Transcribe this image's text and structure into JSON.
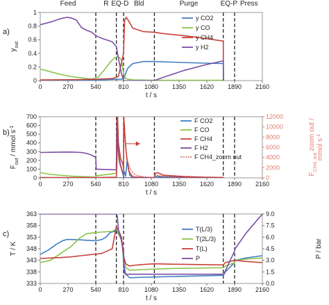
{
  "chart_data": [
    {
      "type": "line",
      "panel_label": "a)",
      "xlabel": "t / s",
      "ylabel": "y",
      "ylabel_sub": "out",
      "xlim": [
        0,
        2160
      ],
      "ylim": [
        0,
        1
      ],
      "x_ticks": [
        0,
        270,
        540,
        810,
        1080,
        1350,
        1620,
        1890,
        2160
      ],
      "y_ticks": [
        0,
        0.2,
        0.4,
        0.6,
        0.8,
        1
      ],
      "y_tick_labels": [
        "0",
        "0.2",
        "0.4",
        "0.6",
        "0.8",
        "1"
      ],
      "phase_lines": [
        540,
        740,
        810,
        1110,
        1780,
        1890
      ],
      "phases": [
        {
          "label": "Feed",
          "x": 270
        },
        {
          "label": "R",
          "x": 640
        },
        {
          "label": "EQ-D",
          "x": 775
        },
        {
          "label": "Bld",
          "x": 960
        },
        {
          "label": "Purge",
          "x": 1445
        },
        {
          "label": "EQ-P",
          "x": 1835
        },
        {
          "label": "Press",
          "x": 2030
        }
      ],
      "legend_position": "right",
      "series": [
        {
          "name": "y CO2",
          "color": "#3f7fc1",
          "x": [
            0,
            540,
            740,
            750,
            780,
            810,
            850,
            900,
            1000,
            1110,
            1300,
            1500,
            1780,
            1781
          ],
          "y": [
            0,
            0.005,
            0.02,
            0.02,
            0.02,
            0.03,
            0.18,
            0.25,
            0.28,
            0.28,
            0.27,
            0.26,
            0.25,
            0
          ]
        },
        {
          "name": "y CO",
          "color": "#8bc34a",
          "x": [
            0,
            100,
            200,
            300,
            400,
            500,
            560,
            620,
            680,
            720,
            745,
            770,
            790,
            810,
            830,
            900,
            1110,
            1780
          ],
          "y": [
            0.17,
            0.13,
            0.09,
            0.06,
            0.04,
            0.02,
            0.05,
            0.15,
            0.27,
            0.33,
            0.35,
            0.34,
            0.3,
            0.1,
            0.03,
            0.01,
            0.005,
            0.005
          ]
        },
        {
          "name": "y CH4",
          "color": "#c8403a",
          "x": [
            0,
            400,
            540,
            700,
            760,
            810,
            820,
            835,
            850,
            900,
            1000,
            1110,
            1200,
            1400,
            1600,
            1780,
            1781
          ],
          "y": [
            0.01,
            0.015,
            0.02,
            0.03,
            0.06,
            0.4,
            0.88,
            0.93,
            0.9,
            0.77,
            0.72,
            0.71,
            0.69,
            0.66,
            0.62,
            0.58,
            0
          ]
        },
        {
          "name": "y H2",
          "color": "#7b4ea3",
          "x": [
            0,
            100,
            200,
            260,
            300,
            350,
            400,
            450,
            500,
            540,
            600,
            700,
            740,
            760,
            790,
            810,
            820,
            1110,
            1200,
            1400,
            1600,
            1780,
            1781
          ],
          "y": [
            0.82,
            0.86,
            0.91,
            0.93,
            0.92,
            0.89,
            0.78,
            0.74,
            0.71,
            0.66,
            0.62,
            0.57,
            0.5,
            0.33,
            0.1,
            0.01,
            0,
            0,
            0.05,
            0.15,
            0.23,
            0.29,
            0
          ]
        }
      ]
    },
    {
      "type": "line",
      "panel_label": "b)",
      "xlabel": "t / s",
      "ylabel": "F",
      "ylabel_sub": "out",
      "ylabel_rest": " / mmol s",
      "ylabel_sup": "-1",
      "y2label": "F",
      "y2label_sub": "CH4, out",
      "y2label_rest": " zoom out /",
      "y2label_line2": "mmol s",
      "y2label_sup": "-1",
      "xlim": [
        0,
        2160
      ],
      "ylim": [
        0,
        700
      ],
      "y2lim": [
        0,
        12000
      ],
      "x_ticks": [
        0,
        270,
        540,
        810,
        1080,
        1350,
        1620,
        1890,
        2160
      ],
      "y_ticks": [
        0,
        100,
        200,
        300,
        400,
        500,
        600,
        700
      ],
      "y2_ticks": [
        0,
        2000,
        4000,
        6000,
        8000,
        10000,
        12000
      ],
      "phase_lines": [
        540,
        740,
        810,
        1110,
        1780,
        1890
      ],
      "legend_position": "right",
      "series": [
        {
          "name": "F CO2",
          "color": "#3f7fc1",
          "x": [
            0,
            540,
            740,
            810,
            815,
            830,
            845,
            870,
            900,
            1110,
            1115,
            1140,
            1200,
            1400,
            1600,
            1780,
            1781
          ],
          "y": [
            0,
            0,
            0,
            0,
            80,
            20,
            200,
            30,
            5,
            0,
            20,
            15,
            10,
            6,
            4,
            3,
            0
          ]
        },
        {
          "name": "F CO",
          "color": "#8bc34a",
          "x": [
            0,
            100,
            300,
            540,
            545,
            700,
            740,
            745,
            755,
            765,
            790,
            805,
            810,
            815,
            830,
            870,
            900,
            1110,
            1780
          ],
          "y": [
            60,
            40,
            20,
            8,
            25,
            45,
            55,
            700,
            400,
            200,
            100,
            60,
            15,
            2,
            0,
            0,
            0,
            0,
            0
          ]
        },
        {
          "name": "F CH4",
          "color": "#c8403a",
          "x": [
            0,
            540,
            740,
            745,
            752,
            760,
            780,
            805,
            810,
            812,
            818,
            822,
            828,
            840,
            860,
            900,
            1110,
            1115,
            1140,
            1200,
            1400,
            1600,
            1780,
            1781
          ],
          "y": [
            3,
            4,
            8,
            150,
            700,
            400,
            230,
            150,
            100,
            700,
            600,
            500,
            400,
            250,
            80,
            10,
            0,
            50,
            60,
            30,
            15,
            8,
            5,
            0
          ]
        },
        {
          "name": "F H2",
          "color": "#7b4ea3",
          "x": [
            0,
            100,
            200,
            300,
            400,
            450,
            500,
            530,
            540,
            545,
            600,
            700,
            740,
            745,
            760,
            780,
            800,
            810,
            815,
            1110,
            1780
          ],
          "y": [
            290,
            293,
            295,
            296,
            290,
            280,
            260,
            240,
            230,
            100,
            97,
            94,
            92,
            700,
            300,
            150,
            60,
            20,
            0,
            0,
            0
          ]
        },
        {
          "name": "F CH4_zoom out",
          "color": "#c8403a",
          "dashed": true,
          "axis": "y2",
          "x": [
            0,
            740,
            745,
            752,
            760,
            775,
            790,
            805,
            810,
            813,
            818,
            825,
            835,
            850,
            880,
            920,
            1000,
            1110,
            1115,
            1140,
            1200,
            1400,
            1600,
            1780,
            1781
          ],
          "y": [
            0,
            0,
            11800,
            9000,
            4500,
            2600,
            1800,
            1200,
            800,
            12000,
            9000,
            7000,
            5000,
            3200,
            1500,
            600,
            200,
            100,
            700,
            500,
            300,
            150,
            100,
            80,
            0
          ]
        }
      ],
      "arrow": {
        "x_from": 830,
        "x_to": 970,
        "y": 6700
      }
    },
    {
      "type": "line",
      "panel_label": "c)",
      "xlabel": "t / s",
      "ylabel": "T / K",
      "y2label": "P / bar",
      "xlim": [
        0,
        2160
      ],
      "ylim": [
        333,
        363
      ],
      "y2lim": [
        0,
        9
      ],
      "x_ticks": [
        0,
        270,
        540,
        810,
        1080,
        1350,
        1620,
        1890,
        2160
      ],
      "y_ticks": [
        333,
        338,
        343,
        348,
        353,
        358,
        363
      ],
      "y2_ticks": [
        0,
        1.5,
        3,
        4.5,
        6,
        7.5,
        9
      ],
      "y2_tick_labels": [
        "0.0",
        "1.5",
        "3.0",
        "4.5",
        "6.0",
        "7.5",
        "9.0"
      ],
      "phase_lines": [
        540,
        740,
        810,
        1110,
        1780,
        1890
      ],
      "legend_position": "right",
      "series": [
        {
          "name": "T(L/3)",
          "color": "#3f7fc1",
          "x": [
            0,
            80,
            160,
            220,
            260,
            300,
            400,
            500,
            540,
            560,
            600,
            640,
            680,
            720,
            740,
            760,
            790,
            800,
            810,
            830,
            870,
            900,
            1000,
            1110,
            1300,
            1500,
            1780,
            1800,
            1890,
            1900,
            2000,
            2160
          ],
          "y": [
            345.5,
            347.5,
            350,
            351.5,
            352,
            352,
            351.8,
            351.5,
            351.5,
            351.6,
            352,
            353,
            355,
            355.5,
            356,
            354.5,
            352,
            349,
            342,
            337,
            335.5,
            335.5,
            335.7,
            335.8,
            336,
            336.2,
            336.5,
            338,
            342,
            343,
            344,
            345
          ]
        },
        {
          "name": "T(2L/3)",
          "color": "#8bc34a",
          "x": [
            0,
            100,
            200,
            300,
            380,
            450,
            540,
            600,
            700,
            740,
            760,
            790,
            800,
            810,
            830,
            870,
            900,
            1000,
            1110,
            1300,
            1500,
            1780,
            1800,
            1890,
            1900,
            2000,
            2160
          ],
          "y": [
            342,
            343,
            346,
            349,
            352.5,
            354.5,
            355,
            355.2,
            355.5,
            356.5,
            355,
            352,
            349,
            343,
            340,
            338.7,
            338.8,
            339,
            339.2,
            339.5,
            339.6,
            339.8,
            340.5,
            342,
            343,
            343.5,
            344
          ]
        },
        {
          "name": "T(L)",
          "color": "#c8403a",
          "x": [
            0,
            100,
            200,
            300,
            400,
            500,
            540,
            600,
            700,
            740,
            760,
            790,
            800,
            810,
            830,
            870,
            900,
            1000,
            1110,
            1300,
            1500,
            1780,
            1800,
            1890,
            1900,
            2000,
            2160
          ],
          "y": [
            343.8,
            344,
            344.2,
            344.5,
            345,
            345.5,
            345.6,
            346,
            348,
            357.5,
            356,
            353,
            349,
            345,
            341.5,
            340.5,
            340.8,
            341.2,
            341.5,
            341.3,
            341.2,
            341,
            342,
            343,
            343,
            342.5,
            342
          ]
        },
        {
          "name": "P",
          "color": "#7b4ea3",
          "axis": "y2",
          "x": [
            0,
            540,
            740,
            750,
            760,
            790,
            800,
            810,
            815,
            820,
            840,
            900,
            1110,
            1300,
            1500,
            1780,
            1785,
            1830,
            1890,
            1895,
            2000,
            2160
          ],
          "y": [
            9,
            9,
            9,
            8.7,
            7,
            5.5,
            4.6,
            4.5,
            1.8,
            1.3,
            1.2,
            1.2,
            1.2,
            1.2,
            1.2,
            1.2,
            1.2,
            2.5,
            4.2,
            4.5,
            6.5,
            9
          ]
        }
      ]
    }
  ]
}
